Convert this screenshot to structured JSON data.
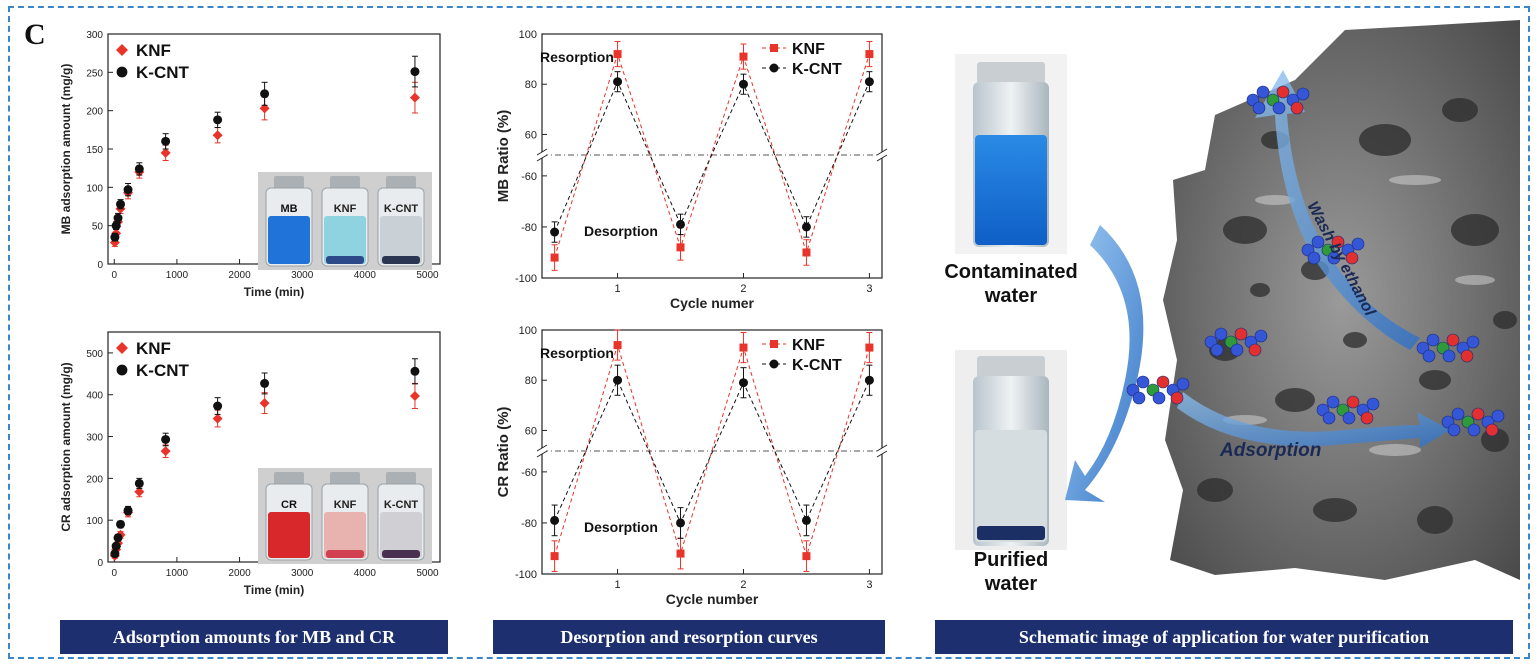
{
  "panel_label": "C",
  "captions": {
    "left": "Adsorption amounts for  MB and CR",
    "middle": "Desorption and resorption curves",
    "right": "Schematic image of application for water purification"
  },
  "colors": {
    "knf": "#e8342a",
    "kcnt": "#111111",
    "caption_bg": "#1d2f6e",
    "frame": "#3a86c8",
    "mb_blue": "#1f73d9",
    "cr_red": "#d9282b"
  },
  "vials": {
    "mb": {
      "labels": [
        "MB",
        "KNF",
        "K-CNT"
      ]
    },
    "cr": {
      "labels": [
        "CR",
        "KNF",
        "K-CNT"
      ]
    }
  },
  "schematic": {
    "contaminated_label_1": "Contaminated",
    "contaminated_label_2": "water",
    "purified_label_1": "Purified",
    "purified_label_2": "water",
    "wash_label": "Wash by ethanol",
    "adsorption_label": "Adsorption"
  },
  "chart_data": [
    {
      "id": "mb-adsorption",
      "type": "scatter",
      "xlabel": "Time (min)",
      "ylabel": "MB adsorption amount (mg/g)",
      "xlim": [
        -100,
        5200
      ],
      "ylim": [
        0,
        300
      ],
      "xticks": [
        0,
        1000,
        2000,
        3000,
        4000,
        5000
      ],
      "yticks": [
        0,
        50,
        100,
        150,
        200,
        250,
        300
      ],
      "legend_position": "top-left",
      "series": [
        {
          "name": "KNF",
          "marker": "diamond",
          "x": [
            10,
            30,
            60,
            100,
            220,
            400,
            820,
            1650,
            2400,
            4800
          ],
          "y": [
            28,
            40,
            55,
            72,
            93,
            120,
            145,
            168,
            203,
            217
          ],
          "err": [
            5,
            5,
            6,
            6,
            8,
            8,
            10,
            10,
            15,
            20
          ]
        },
        {
          "name": "K-CNT",
          "marker": "circle",
          "x": [
            10,
            30,
            60,
            100,
            220,
            400,
            820,
            1650,
            2400,
            4800
          ],
          "y": [
            35,
            50,
            60,
            78,
            97,
            124,
            160,
            188,
            222,
            251
          ],
          "err": [
            5,
            5,
            6,
            6,
            8,
            8,
            10,
            10,
            15,
            20
          ]
        }
      ]
    },
    {
      "id": "cr-adsorption",
      "type": "scatter",
      "xlabel": "Time (min)",
      "ylabel": "CR adsorption amount (mg/g)",
      "xlim": [
        -100,
        5200
      ],
      "ylim": [
        0,
        550
      ],
      "xticks": [
        0,
        1000,
        2000,
        3000,
        4000,
        5000
      ],
      "yticks": [
        0,
        100,
        200,
        300,
        400,
        500
      ],
      "legend_position": "top-left",
      "series": [
        {
          "name": "KNF",
          "marker": "diamond",
          "x": [
            10,
            30,
            60,
            100,
            220,
            400,
            820,
            1650,
            2400,
            4800
          ],
          "y": [
            15,
            30,
            45,
            65,
            118,
            168,
            265,
            343,
            380,
            397
          ],
          "err": [
            6,
            6,
            8,
            8,
            10,
            12,
            15,
            20,
            25,
            30
          ]
        },
        {
          "name": "K-CNT",
          "marker": "circle",
          "x": [
            10,
            30,
            60,
            100,
            220,
            400,
            820,
            1650,
            2400,
            4800
          ],
          "y": [
            20,
            38,
            58,
            90,
            123,
            188,
            293,
            373,
            427,
            456
          ],
          "err": [
            6,
            6,
            8,
            8,
            10,
            12,
            15,
            20,
            25,
            30
          ]
        }
      ]
    },
    {
      "id": "mb-ratio",
      "type": "line",
      "xlabel": "Cycle numer",
      "ylabel": "MB Ratio (%)",
      "xlim": [
        0.4,
        3.1
      ],
      "xticks": [
        1,
        2,
        3
      ],
      "y_upper_ticks": [
        60,
        80,
        100
      ],
      "y_lower_ticks": [
        -60,
        -80,
        -100
      ],
      "broken_y_axis": true,
      "legend_position": "top-right",
      "annotations": [
        "Resorption",
        "Desorption"
      ],
      "series": [
        {
          "name": "KNF",
          "marker": "square",
          "x": [
            0.5,
            1,
            1.5,
            2,
            2.5,
            3
          ],
          "y": [
            -92,
            92,
            -88,
            91,
            -90,
            92
          ],
          "err": [
            5,
            5,
            5,
            5,
            5,
            5
          ]
        },
        {
          "name": "K-CNT",
          "marker": "circle",
          "x": [
            0.5,
            1,
            1.5,
            2,
            2.5,
            3
          ],
          "y": [
            -82,
            81,
            -79,
            80,
            -80,
            81
          ],
          "err": [
            4,
            4,
            4,
            4,
            4,
            4
          ]
        }
      ]
    },
    {
      "id": "cr-ratio",
      "type": "line",
      "xlabel": "Cycle number",
      "ylabel": "CR Ratio (%)",
      "xlim": [
        0.4,
        3.1
      ],
      "xticks": [
        1,
        2,
        3
      ],
      "y_upper_ticks": [
        60,
        80,
        100
      ],
      "y_lower_ticks": [
        -60,
        -80,
        -100
      ],
      "broken_y_axis": true,
      "legend_position": "top-right",
      "annotations": [
        "Resorption",
        "Desorption"
      ],
      "series": [
        {
          "name": "KNF",
          "marker": "square",
          "x": [
            0.5,
            1,
            1.5,
            2,
            2.5,
            3
          ],
          "y": [
            -93,
            94,
            -92,
            93,
            -93,
            93
          ],
          "err": [
            6,
            6,
            6,
            6,
            6,
            6
          ]
        },
        {
          "name": "K-CNT",
          "marker": "circle",
          "x": [
            0.5,
            1,
            1.5,
            2,
            2.5,
            3
          ],
          "y": [
            -79,
            80,
            -80,
            79,
            -79,
            80
          ],
          "err": [
            6,
            6,
            6,
            6,
            6,
            6
          ]
        }
      ]
    }
  ]
}
